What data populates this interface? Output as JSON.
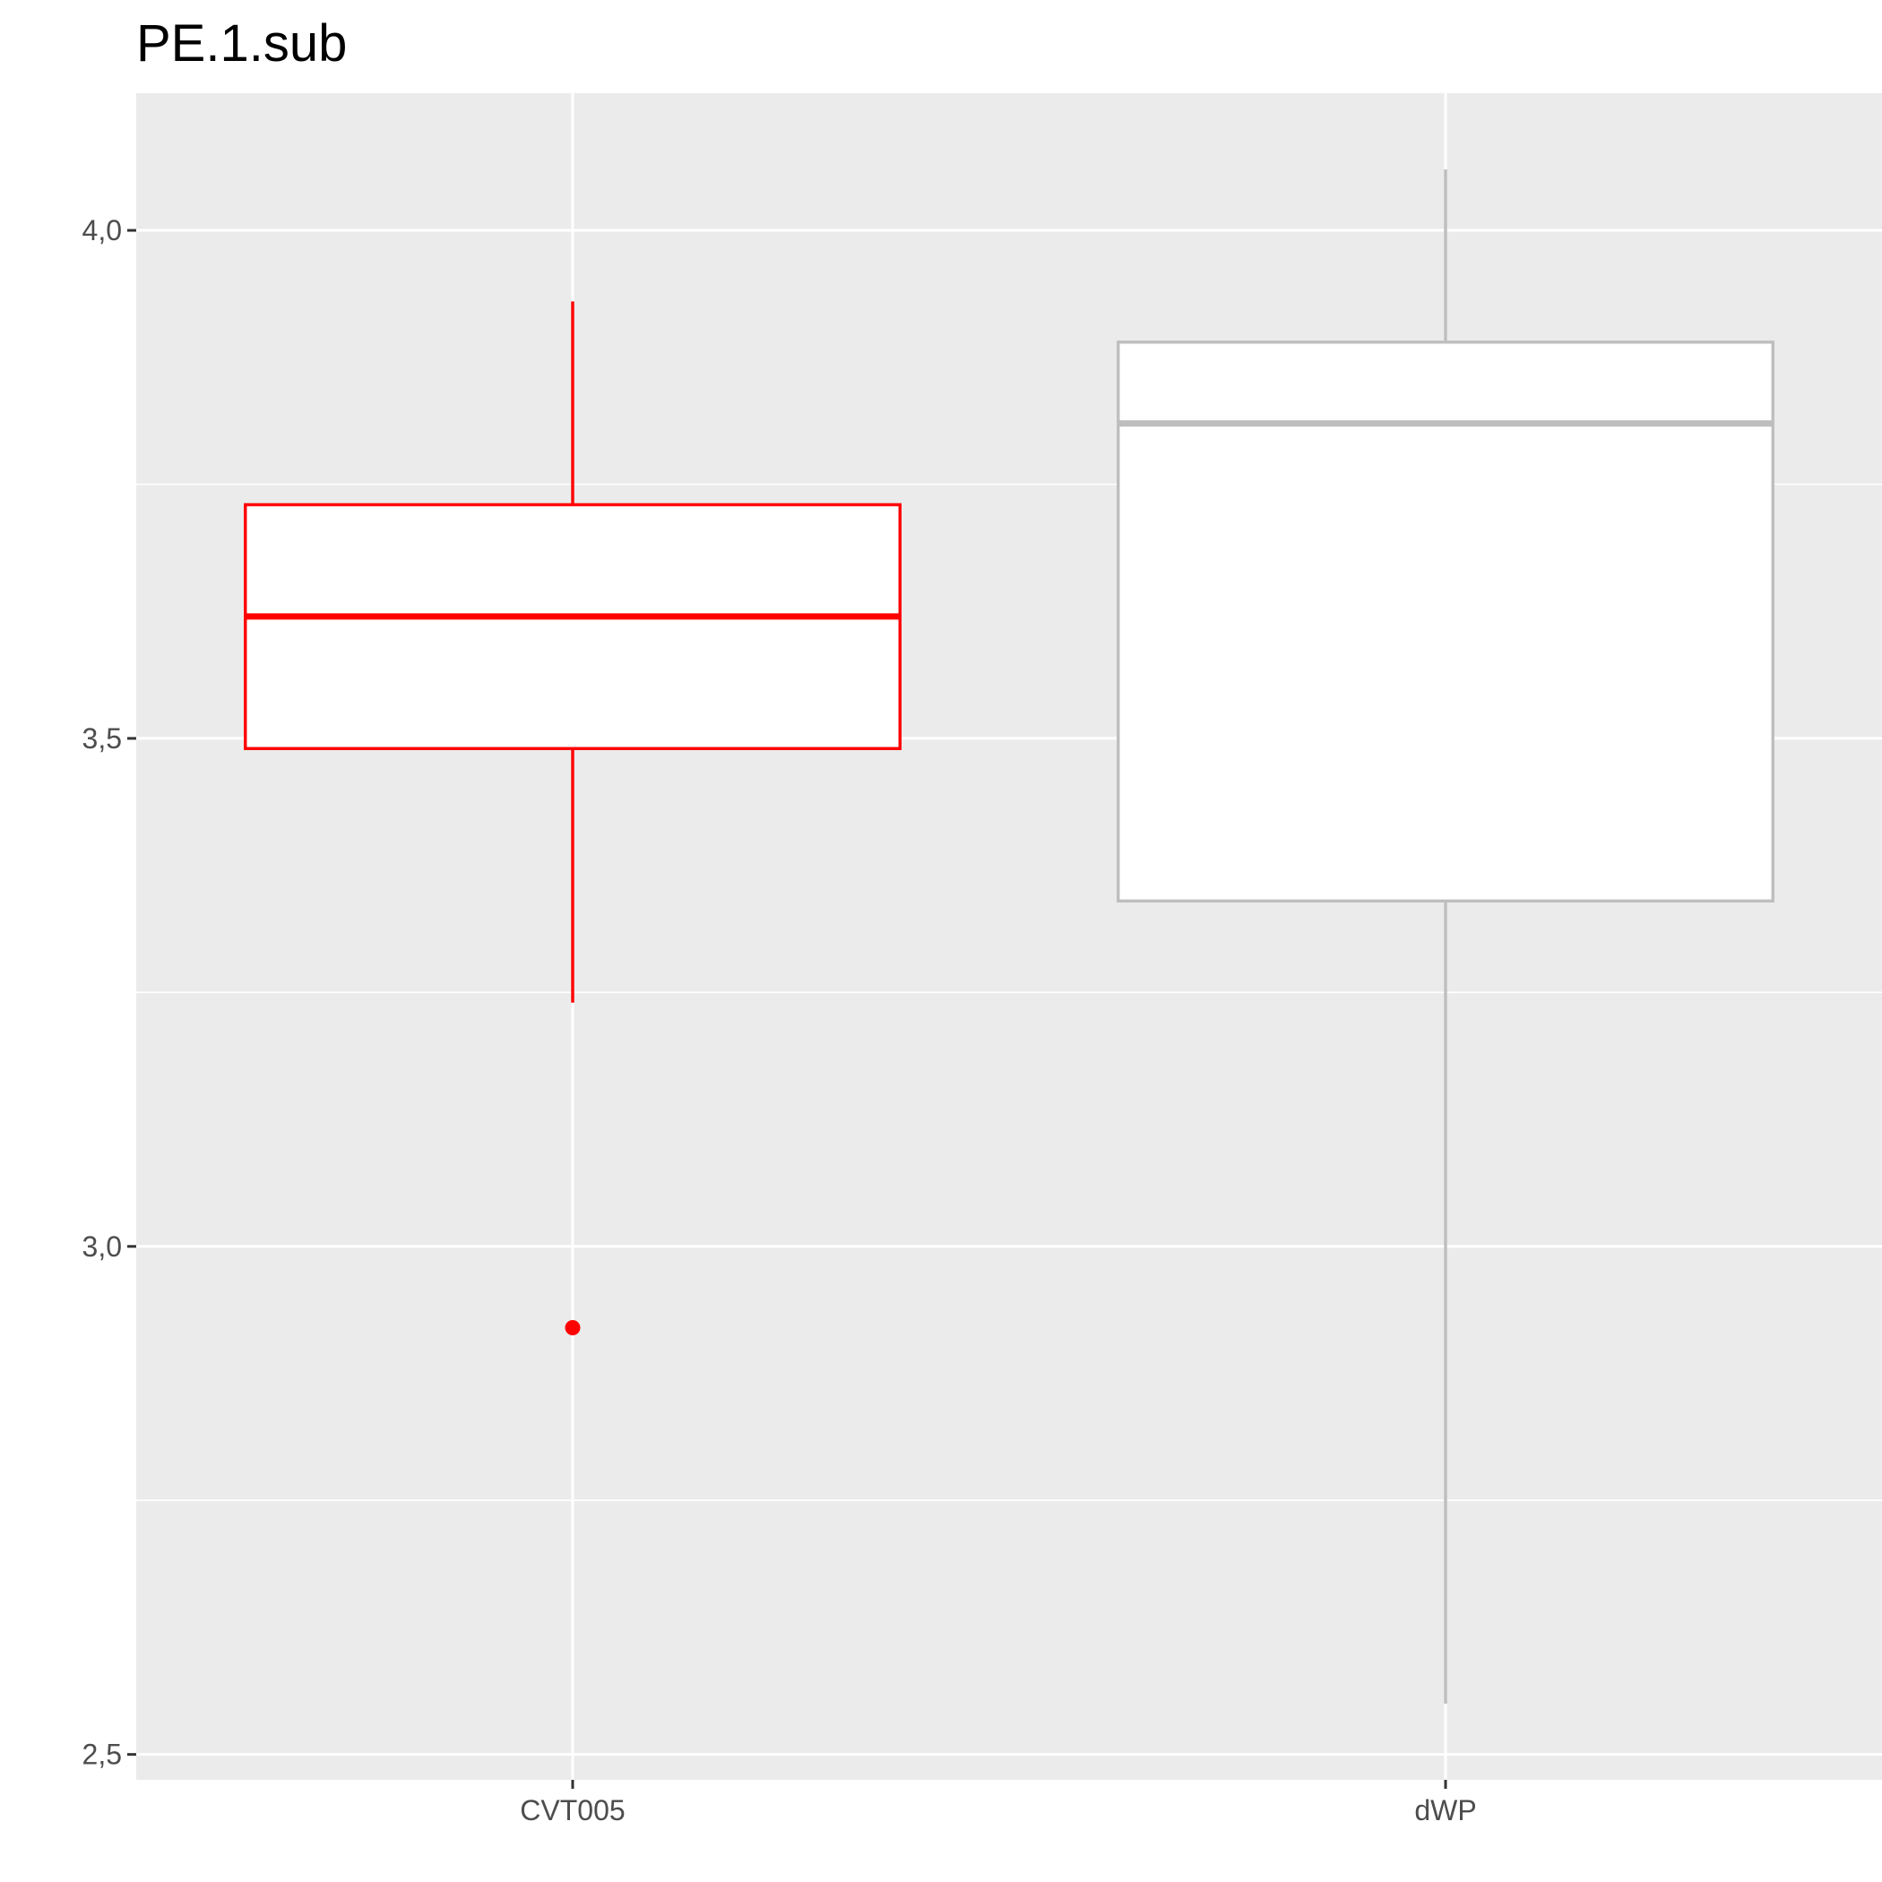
{
  "chart_data": {
    "type": "boxplot",
    "title": "PE.1.sub",
    "xlabel": "",
    "ylabel": "",
    "categories": [
      "CVT005",
      "dWP"
    ],
    "boxes": [
      {
        "category": "CVT005",
        "whisker_low": 3.24,
        "q1": 3.49,
        "median": 3.62,
        "q3": 3.73,
        "whisker_high": 3.93,
        "outliers": [
          2.92
        ],
        "color": "#FF0000"
      },
      {
        "category": "dWP",
        "whisker_low": 2.55,
        "q1": 3.34,
        "median": 3.81,
        "q3": 3.89,
        "whisker_high": 4.06,
        "outliers": [],
        "color": "#BEBEBE"
      }
    ],
    "y_ticks": [
      2.5,
      3.0,
      3.5,
      4.0
    ],
    "y_tick_labels": [
      "2,5",
      "3,0",
      "3,5",
      "4,0"
    ],
    "ylim": [
      2.475,
      4.135
    ],
    "grid": true,
    "panel_background": "#EBEBEB",
    "grid_color": "#FFFFFF"
  }
}
